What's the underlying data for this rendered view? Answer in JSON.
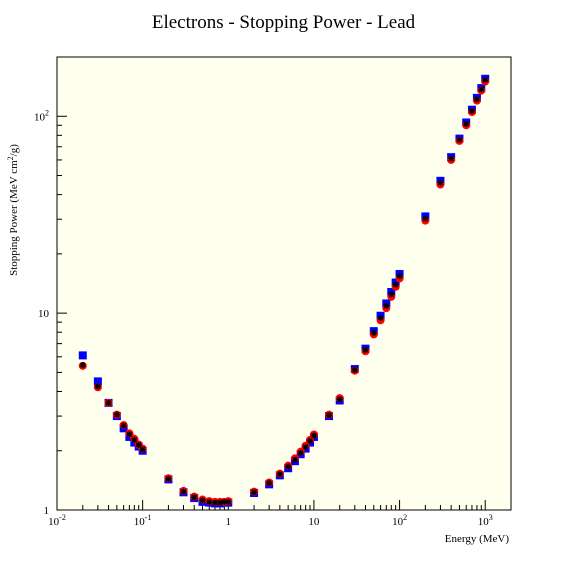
{
  "chart_data": {
    "type": "scatter",
    "title": "Electrons - Stopping Power - Lead",
    "xlabel": "Energy (MeV)",
    "ylabel_main": "Stopping Power (MeV cm",
    "ylabel_sup": "2",
    "ylabel_tail": "/g)",
    "x_scale": "log",
    "y_scale": "log",
    "xlim": [
      0.01,
      2000
    ],
    "ylim": [
      1,
      200
    ],
    "grid": false,
    "background_color": "#ffffee",
    "x_ticks": [
      {
        "value": 0.01,
        "base": "10",
        "exp": "-2"
      },
      {
        "value": 0.1,
        "base": "10",
        "exp": "-1"
      },
      {
        "value": 1,
        "base": "1",
        "exp": ""
      },
      {
        "value": 10,
        "base": "10",
        "exp": ""
      },
      {
        "value": 100,
        "base": "10",
        "exp": "2"
      },
      {
        "value": 1000,
        "base": "10",
        "exp": "3"
      }
    ],
    "y_ticks": [
      {
        "value": 1,
        "base": "1",
        "exp": ""
      },
      {
        "value": 10,
        "base": "10",
        "exp": ""
      },
      {
        "value": 100,
        "base": "10",
        "exp": "2"
      }
    ],
    "series": [
      {
        "marker": "square",
        "color": "#0000ff",
        "x": [
          0.02,
          0.03,
          0.04,
          0.05,
          0.06,
          0.07,
          0.08,
          0.09,
          0.1,
          0.2,
          0.3,
          0.4,
          0.5,
          0.6,
          0.7,
          0.8,
          0.9,
          1,
          2,
          3,
          4,
          5,
          6,
          7,
          8,
          9,
          10,
          15,
          20,
          30,
          40,
          50,
          60,
          70,
          80,
          90,
          100,
          200,
          300,
          400,
          500,
          600,
          700,
          800,
          900,
          1000
        ],
        "y": [
          6.1,
          4.5,
          3.5,
          3.0,
          2.6,
          2.35,
          2.2,
          2.1,
          2.0,
          1.43,
          1.23,
          1.15,
          1.1,
          1.09,
          1.08,
          1.08,
          1.09,
          1.09,
          1.22,
          1.35,
          1.5,
          1.63,
          1.77,
          1.92,
          2.05,
          2.2,
          2.35,
          3.0,
          3.6,
          5.2,
          6.6,
          8.1,
          9.7,
          11.2,
          12.8,
          14.3,
          15.8,
          31,
          47,
          62,
          77,
          93,
          108,
          124,
          139,
          155
        ]
      },
      {
        "marker": "circle",
        "color": "#ff0000",
        "x": [
          0.02,
          0.03,
          0.04,
          0.05,
          0.06,
          0.07,
          0.08,
          0.09,
          0.1,
          0.2,
          0.3,
          0.4,
          0.5,
          0.6,
          0.7,
          0.8,
          0.9,
          1,
          2,
          3,
          4,
          5,
          6,
          7,
          8,
          9,
          10,
          15,
          20,
          30,
          40,
          50,
          60,
          70,
          80,
          90,
          100,
          200,
          300,
          400,
          500,
          600,
          700,
          800,
          900,
          1000
        ],
        "y": [
          5.4,
          4.2,
          3.5,
          3.05,
          2.7,
          2.45,
          2.3,
          2.15,
          2.05,
          1.45,
          1.25,
          1.17,
          1.13,
          1.11,
          1.1,
          1.1,
          1.1,
          1.11,
          1.24,
          1.38,
          1.53,
          1.68,
          1.83,
          1.98,
          2.12,
          2.27,
          2.42,
          3.05,
          3.7,
          5.1,
          6.4,
          7.8,
          9.2,
          10.6,
          12.1,
          13.6,
          15.0,
          29.5,
          45,
          60,
          75,
          90,
          105,
          120,
          135,
          150
        ]
      },
      {
        "marker": "star",
        "color": "#000000",
        "x": [
          0.02,
          0.03,
          0.04,
          0.05,
          0.06,
          0.07,
          0.08,
          0.09,
          0.1,
          0.2,
          0.3,
          0.4,
          0.5,
          0.6,
          0.7,
          0.8,
          0.9,
          1,
          2,
          3,
          4,
          5,
          6,
          7,
          8,
          9,
          10,
          15,
          20,
          30,
          40,
          50,
          60,
          70,
          80,
          90,
          100,
          200,
          300,
          400,
          500,
          600,
          700,
          800,
          900,
          1000
        ],
        "y": [
          5.45,
          4.25,
          3.5,
          3.05,
          2.68,
          2.42,
          2.27,
          2.14,
          2.03,
          1.44,
          1.24,
          1.16,
          1.12,
          1.1,
          1.09,
          1.09,
          1.1,
          1.1,
          1.23,
          1.37,
          1.52,
          1.66,
          1.8,
          1.95,
          2.09,
          2.24,
          2.39,
          3.03,
          3.65,
          5.15,
          6.5,
          7.95,
          9.45,
          10.9,
          12.45,
          13.95,
          15.4,
          30.2,
          46,
          61,
          76,
          91.5,
          106.5,
          122,
          137,
          152.5
        ]
      }
    ]
  }
}
